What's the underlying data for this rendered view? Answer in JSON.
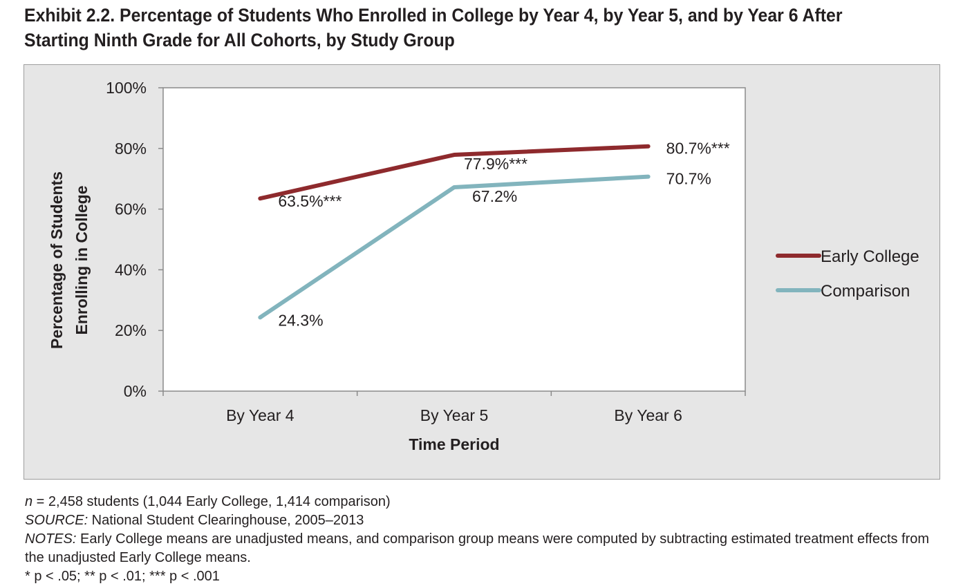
{
  "exhibit_title": "Exhibit 2.2. Percentage of Students Who Enrolled in College by Year 4, by Year 5, and by Year 6 After Starting Ninth Grade for All Cohorts, by Study Group",
  "chart_data": {
    "type": "line",
    "title": "",
    "xlabel": "Time Period",
    "ylabel": "Percentage of Students Enrolling in College",
    "ylabel_lines": [
      "Percentage of Students",
      "Enrolling in College"
    ],
    "categories": [
      "By Year 4",
      "By Year 5",
      "By Year 6"
    ],
    "ylim": [
      0,
      100
    ],
    "yticks": [
      0,
      20,
      40,
      60,
      80,
      100
    ],
    "ytick_labels": [
      "0%",
      "20%",
      "40%",
      "60%",
      "80%",
      "100%"
    ],
    "grid": false,
    "legend_position": "right",
    "series": [
      {
        "name": "Early College",
        "color": "#8e2a2d",
        "values": [
          63.5,
          77.9,
          80.7
        ],
        "labels": [
          "63.5%***",
          "77.9%***",
          "80.7%***"
        ]
      },
      {
        "name": "Comparison",
        "color": "#82b4bd",
        "values": [
          24.3,
          67.2,
          70.7
        ],
        "labels": [
          "24.3%",
          "67.2%",
          "70.7%"
        ]
      }
    ]
  },
  "footnotes": {
    "n_label": "n",
    "n_text": " = 2,458 students (1,044 Early College, 1,414 comparison)",
    "source_label": "SOURCE:",
    "source_text": " National Student Clearinghouse, 2005–2013",
    "notes_label": "NOTES:",
    "notes_text": " Early College means are unadjusted means, and comparison group means were computed by subtracting estimated treatment effects from the unadjusted Early College means.",
    "significance": "* p < .05; ** p < .01; *** p < .001"
  }
}
